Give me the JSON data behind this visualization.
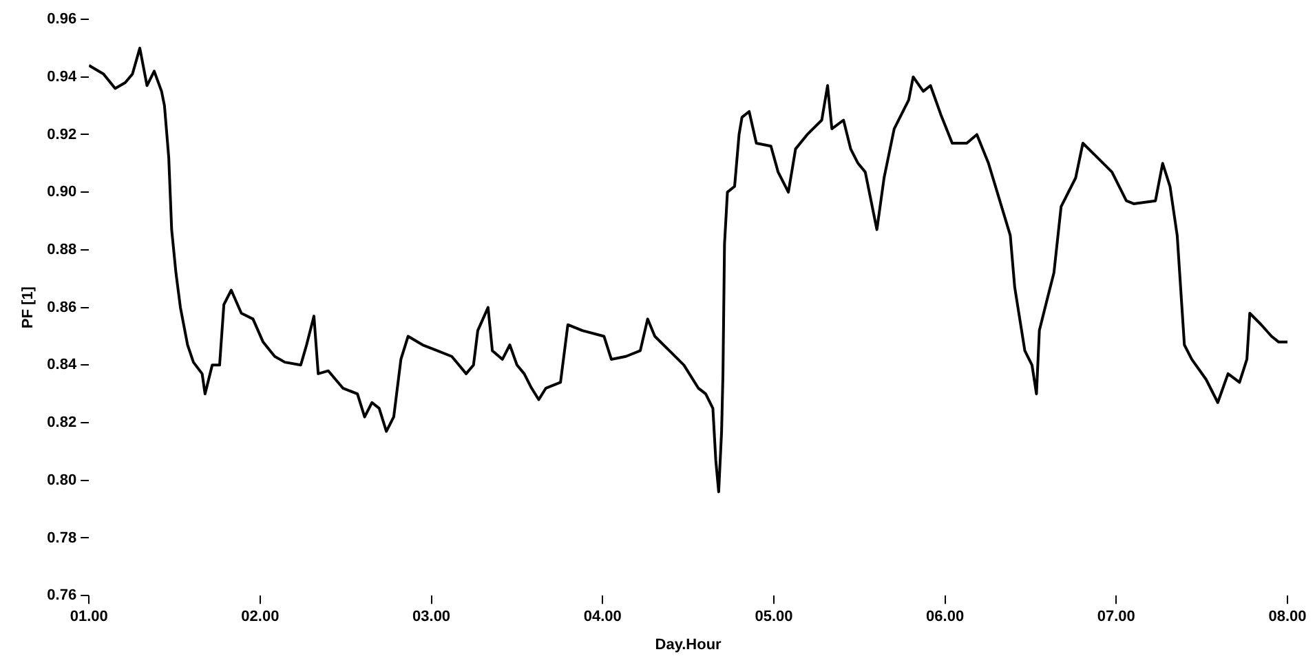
{
  "chart_data": {
    "type": "line",
    "xlabel": "Day.Hour",
    "ylabel": "PF [1]",
    "xlim": [
      1,
      8
    ],
    "ylim": [
      0.76,
      0.96
    ],
    "xticks": [
      {
        "value": 1,
        "label": "01.00"
      },
      {
        "value": 2,
        "label": "02.00"
      },
      {
        "value": 3,
        "label": "03.00"
      },
      {
        "value": 4,
        "label": "04.00"
      },
      {
        "value": 5,
        "label": "05.00"
      },
      {
        "value": 6,
        "label": "06.00"
      },
      {
        "value": 7,
        "label": "07.00"
      },
      {
        "value": 8,
        "label": "08.00"
      }
    ],
    "yticks": [
      {
        "value": 0.76,
        "label": "0.76"
      },
      {
        "value": 0.78,
        "label": "0.78"
      },
      {
        "value": 0.8,
        "label": "0.80"
      },
      {
        "value": 0.82,
        "label": "0.82"
      },
      {
        "value": 0.84,
        "label": "0.84"
      },
      {
        "value": 0.86,
        "label": "0.86"
      },
      {
        "value": 0.88,
        "label": "0.88"
      },
      {
        "value": 0.9,
        "label": "0.90"
      },
      {
        "value": 0.92,
        "label": "0.92"
      },
      {
        "value": 0.94,
        "label": "0.94"
      },
      {
        "value": 0.96,
        "label": "0.96"
      }
    ],
    "grid": false,
    "legend": false,
    "marker": "none",
    "line_style": "solid",
    "x": [
      1.0,
      1.085,
      1.153,
      1.212,
      1.254,
      1.297,
      1.339,
      1.381,
      1.424,
      1.441,
      1.466,
      1.483,
      1.508,
      1.534,
      1.576,
      1.61,
      1.661,
      1.678,
      1.72,
      1.763,
      1.788,
      1.831,
      1.89,
      1.958,
      2.017,
      2.085,
      2.144,
      2.237,
      2.271,
      2.314,
      2.339,
      2.398,
      2.483,
      2.568,
      2.61,
      2.653,
      2.695,
      2.737,
      2.78,
      2.822,
      2.864,
      2.949,
      3.034,
      3.119,
      3.161,
      3.203,
      3.246,
      3.271,
      3.331,
      3.356,
      3.415,
      3.458,
      3.5,
      3.542,
      3.585,
      3.627,
      3.669,
      3.754,
      3.797,
      3.881,
      4.008,
      4.051,
      4.136,
      4.22,
      4.263,
      4.305,
      4.39,
      4.475,
      4.559,
      4.602,
      4.644,
      4.661,
      4.678,
      4.695,
      4.703,
      4.712,
      4.729,
      4.771,
      4.797,
      4.814,
      4.856,
      4.898,
      4.983,
      5.025,
      5.085,
      5.127,
      5.195,
      5.28,
      5.314,
      5.339,
      5.407,
      5.449,
      5.492,
      5.534,
      5.602,
      5.644,
      5.703,
      5.788,
      5.814,
      5.873,
      5.915,
      5.975,
      6.042,
      6.127,
      6.186,
      6.254,
      6.381,
      6.407,
      6.466,
      6.508,
      6.534,
      6.551,
      6.593,
      6.636,
      6.678,
      6.763,
      6.805,
      6.89,
      6.975,
      7.059,
      7.102,
      7.229,
      7.271,
      7.314,
      7.356,
      7.398,
      7.441,
      7.525,
      7.593,
      7.653,
      7.72,
      7.763,
      7.78,
      7.847,
      7.907,
      7.949,
      8.0
    ],
    "series": [
      {
        "color": "#000000",
        "values": [
          0.944,
          0.941,
          0.936,
          0.938,
          0.941,
          0.95,
          0.937,
          0.942,
          0.935,
          0.93,
          0.912,
          0.887,
          0.872,
          0.86,
          0.847,
          0.841,
          0.837,
          0.83,
          0.84,
          0.84,
          0.861,
          0.866,
          0.858,
          0.856,
          0.848,
          0.843,
          0.841,
          0.84,
          0.847,
          0.857,
          0.837,
          0.838,
          0.832,
          0.83,
          0.822,
          0.827,
          0.825,
          0.817,
          0.822,
          0.842,
          0.85,
          0.847,
          0.845,
          0.843,
          0.84,
          0.837,
          0.84,
          0.852,
          0.86,
          0.845,
          0.842,
          0.847,
          0.84,
          0.837,
          0.832,
          0.828,
          0.832,
          0.834,
          0.854,
          0.852,
          0.85,
          0.842,
          0.843,
          0.845,
          0.856,
          0.85,
          0.845,
          0.84,
          0.832,
          0.83,
          0.825,
          0.807,
          0.796,
          0.817,
          0.837,
          0.882,
          0.9,
          0.902,
          0.92,
          0.926,
          0.928,
          0.917,
          0.916,
          0.907,
          0.9,
          0.915,
          0.92,
          0.925,
          0.937,
          0.922,
          0.925,
          0.915,
          0.91,
          0.907,
          0.887,
          0.905,
          0.922,
          0.932,
          0.94,
          0.935,
          0.937,
          0.927,
          0.917,
          0.917,
          0.92,
          0.91,
          0.885,
          0.867,
          0.845,
          0.84,
          0.83,
          0.852,
          0.862,
          0.872,
          0.895,
          0.905,
          0.917,
          0.912,
          0.907,
          0.897,
          0.896,
          0.897,
          0.91,
          0.902,
          0.885,
          0.847,
          0.842,
          0.835,
          0.827,
          0.837,
          0.834,
          0.842,
          0.858,
          0.854,
          0.85,
          0.848,
          0.848
        ]
      }
    ]
  }
}
